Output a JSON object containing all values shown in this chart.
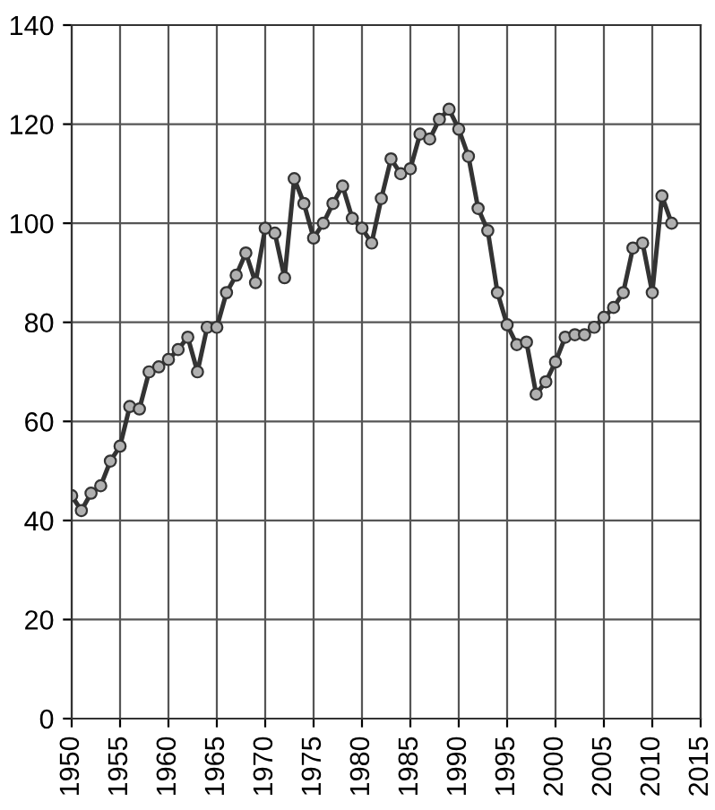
{
  "chart_data": {
    "type": "line",
    "x": [
      1950,
      1951,
      1952,
      1953,
      1954,
      1955,
      1956,
      1957,
      1958,
      1959,
      1960,
      1961,
      1962,
      1963,
      1964,
      1965,
      1966,
      1967,
      1968,
      1969,
      1970,
      1971,
      1972,
      1973,
      1974,
      1975,
      1976,
      1977,
      1978,
      1979,
      1980,
      1981,
      1982,
      1983,
      1984,
      1985,
      1986,
      1987,
      1988,
      1989,
      1990,
      1991,
      1992,
      1993,
      1994,
      1995,
      1996,
      1997,
      1998,
      1999,
      2000,
      2001,
      2002,
      2003,
      2004,
      2005,
      2006,
      2007,
      2008,
      2009,
      2010,
      2011,
      2012
    ],
    "series": [
      {
        "color": "#333333",
        "values": [
          45,
          42,
          45.5,
          47,
          52,
          55,
          63,
          62.5,
          70,
          71,
          72.5,
          74.5,
          77,
          70,
          79,
          79,
          86,
          89.5,
          94,
          88,
          99,
          98,
          89,
          109,
          104,
          97,
          100,
          104,
          107.5,
          101,
          99,
          96,
          105,
          113,
          110,
          111,
          118,
          117,
          121,
          123,
          119,
          113.5,
          103,
          98.5,
          86,
          79.5,
          75.5,
          76,
          65.5,
          68,
          72,
          77,
          77.5,
          77.5,
          79,
          81,
          83,
          86,
          95,
          96,
          86,
          105.5,
          100
        ]
      }
    ],
    "xlim": [
      1950,
      2015
    ],
    "xticks": [
      1950,
      1955,
      1960,
      1965,
      1970,
      1975,
      1980,
      1985,
      1990,
      1995,
      2000,
      2005,
      2010,
      2015
    ],
    "ylim": [
      0,
      140
    ],
    "yticks": [
      0,
      20,
      40,
      60,
      80,
      100,
      120,
      140
    ],
    "grid": true,
    "marker": "circle",
    "line_style": "solid",
    "legend": false
  }
}
